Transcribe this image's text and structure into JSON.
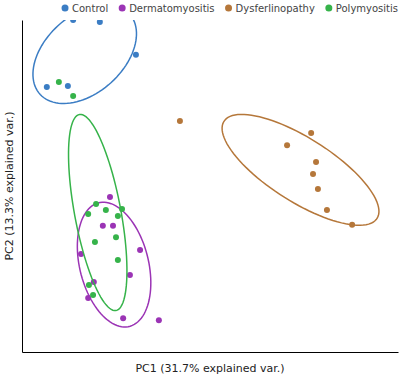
{
  "chart_data": {
    "type": "scatter",
    "x_label": "PC1 (31.7% explained var.)",
    "y_label": "PC2 (13.3% explained var.)",
    "xlim": [
      0,
      100
    ],
    "ylim": [
      0,
      100
    ],
    "xticks": [],
    "yticks": [],
    "tick_labels": false,
    "legend": "top",
    "series": [
      {
        "name": "Control",
        "color": "#3b7dc4",
        "marker": "circle",
        "x": [
          13.6,
          20.7,
          30.3,
          6.6,
          12.2
        ],
        "values": [
          100.0,
          99.4,
          89.5,
          79.8,
          80.1
        ]
      },
      {
        "name": "Dermatomyositis",
        "color": "#9b34b5",
        "marker": "circle",
        "x": [
          23.4,
          24.2,
          21.5,
          31.4,
          15.7,
          28.7,
          19.1,
          17.6,
          26.9,
          36.4
        ],
        "values": [
          46.7,
          38.0,
          38.0,
          30.7,
          29.5,
          23.2,
          21.1,
          16.3,
          10.2,
          9.6
        ]
      },
      {
        "name": "Dysferlinopathy",
        "color": "#b5773a",
        "marker": "circle",
        "x": [
          42.0,
          76.9,
          70.5,
          78.2,
          77.4,
          78.7,
          81.1,
          87.8
        ],
        "values": [
          69.6,
          66.0,
          62.3,
          57.2,
          53.6,
          49.1,
          42.8,
          38.3
        ]
      },
      {
        "name": "Polymyositis",
        "color": "#36b34a",
        "marker": "circle",
        "x": [
          9.8,
          13.6,
          17.6,
          19.7,
          22.3,
          25.5,
          26.6,
          25.0,
          19.4,
          25.5,
          17.8,
          18.9
        ],
        "values": [
          81.3,
          77.1,
          41.6,
          44.6,
          42.8,
          41.0,
          43.1,
          34.6,
          33.1,
          27.7,
          20.2,
          17.2
        ]
      }
    ]
  }
}
